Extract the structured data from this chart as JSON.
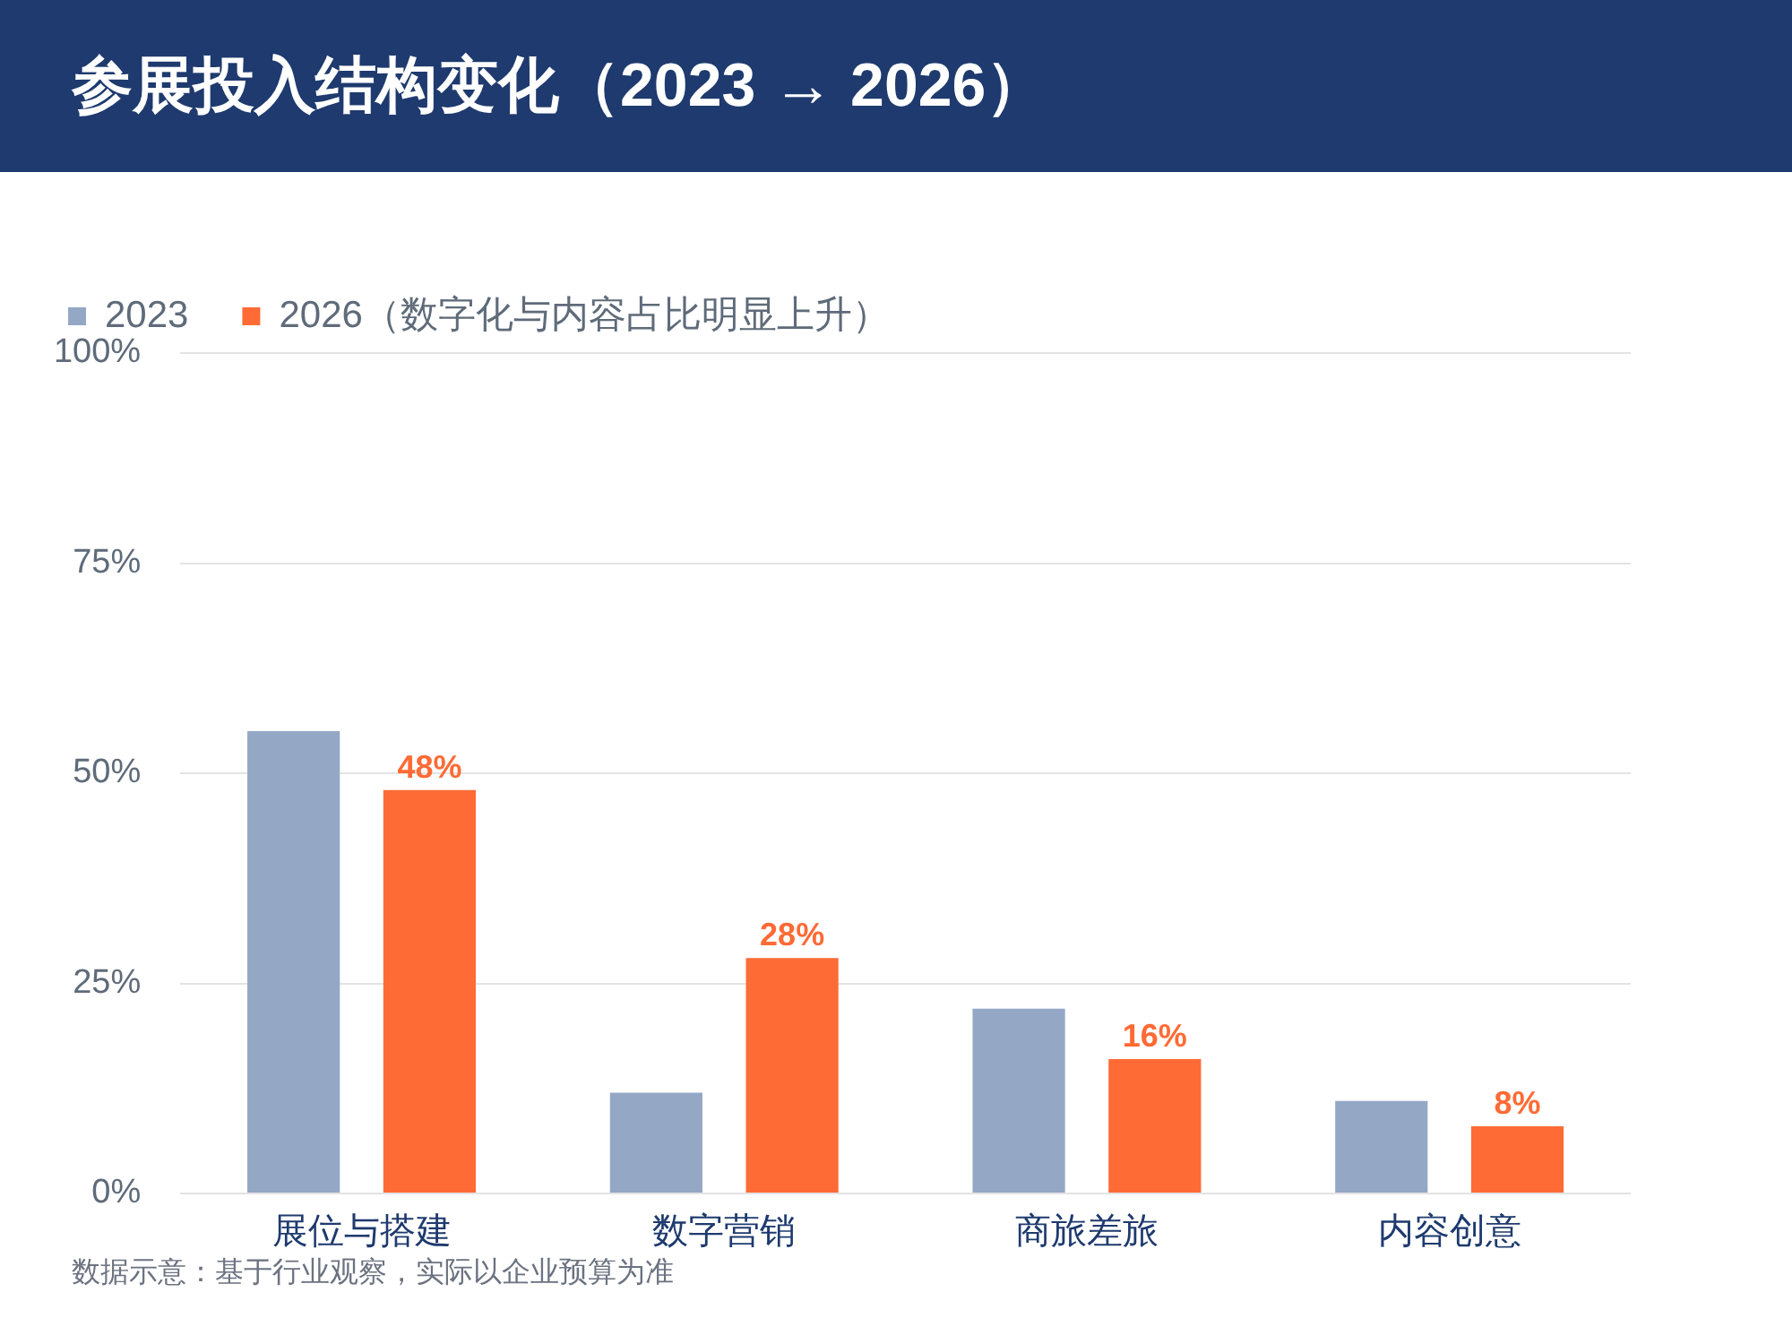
{
  "chart_data": {
    "type": "bar",
    "title": "参展投入结构变化（2023 → 2026）",
    "categories": [
      "展位与搭建",
      "数字营销",
      "商旅差旅",
      "内容创意"
    ],
    "series": [
      {
        "name": "2023",
        "color": "#94a8c6",
        "values": [
          55,
          12,
          22,
          11
        ]
      },
      {
        "name": "2026（数字化与内容占比明显上升）",
        "color": "#ff6b35",
        "values": [
          48,
          28,
          16,
          8
        ],
        "value_labels": [
          "48%",
          "28%",
          "16%",
          "8%"
        ]
      }
    ],
    "ylim": [
      0,
      100
    ],
    "yticks": [
      {
        "value": 0,
        "label": "0%"
      },
      {
        "value": 25,
        "label": "25%"
      },
      {
        "value": 50,
        "label": "50%"
      },
      {
        "value": 75,
        "label": "75%"
      },
      {
        "value": 100,
        "label": "100%"
      }
    ],
    "grid": "y",
    "legend": "top left",
    "annotations": [
      "数据示意：基于行业观察，实际以企业预算为准"
    ]
  }
}
